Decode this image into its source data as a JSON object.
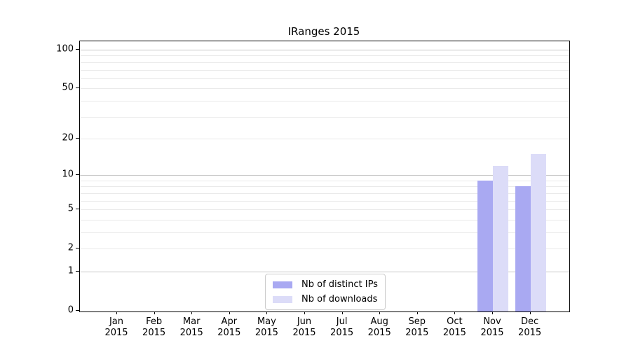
{
  "chart_data": {
    "type": "bar",
    "title": "IRanges 2015",
    "x_categories": [
      "Jan",
      "Feb",
      "Mar",
      "Apr",
      "May",
      "Jun",
      "Jul",
      "Aug",
      "Sep",
      "Oct",
      "Nov",
      "Dec"
    ],
    "x_year_label": "2015",
    "series": [
      {
        "name": "Nb of distinct IPs",
        "color": "#a9a9f2",
        "values": [
          0,
          0,
          0,
          0,
          0,
          0,
          0,
          0,
          0,
          0,
          9,
          8
        ]
      },
      {
        "name": "Nb of downloads",
        "color": "#dcdcf8",
        "values": [
          0,
          0,
          0,
          0,
          0,
          0,
          0,
          0,
          0,
          0,
          12,
          15
        ]
      }
    ],
    "y_axis": {
      "scale": "log1p",
      "ticks": [
        100,
        50,
        20,
        10,
        5,
        2,
        1,
        0
      ],
      "range": [
        0,
        117
      ],
      "major_gridlines": [
        1,
        10,
        100
      ],
      "minor_gridlines": [
        2,
        3,
        4,
        5,
        6,
        7,
        8,
        9,
        20,
        30,
        40,
        50,
        60,
        70,
        80,
        90
      ]
    },
    "legend": {
      "position": "lower center"
    },
    "colors": {
      "spine": "#000000",
      "grid_major": "#c6c6c6",
      "grid_minor": "#eaeaea",
      "text": "#000000"
    }
  }
}
